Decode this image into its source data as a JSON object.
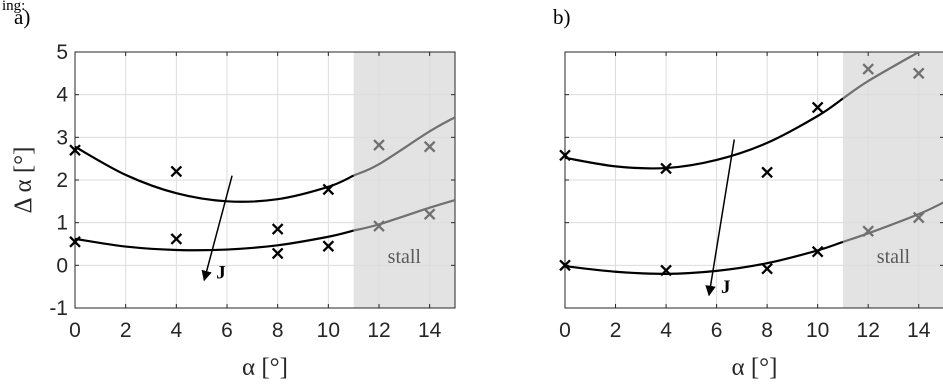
{
  "top_fragment": "ing:",
  "chart_data": [
    {
      "panel": "a)",
      "type": "scatter",
      "xlabel": "α [°]",
      "ylabel": "Δ α [°]",
      "xlim": [
        0,
        15
      ],
      "ylim": [
        -1,
        5
      ],
      "xticks": [
        0,
        2,
        4,
        6,
        8,
        10,
        12,
        14
      ],
      "yticks": [
        -1,
        0,
        1,
        2,
        3,
        4,
        5
      ],
      "grid": true,
      "stall_region": {
        "from": 11,
        "to": 15,
        "label": "stall"
      },
      "series": [
        {
          "points": [
            [
              0,
              2.7
            ],
            [
              4,
              2.2
            ],
            [
              10,
              1.78
            ],
            [
              12,
              2.82
            ],
            [
              14,
              2.78
            ]
          ],
          "curve": [
            [
              0,
              2.78
            ],
            [
              2,
              2.12
            ],
            [
              4,
              1.69
            ],
            [
              6,
              1.5
            ],
            [
              8,
              1.55
            ],
            [
              10,
              1.84
            ],
            [
              12,
              2.37
            ],
            [
              14,
              3.14
            ],
            [
              15,
              3.47
            ]
          ]
        },
        {
          "points": [
            [
              0,
              0.55
            ],
            [
              4,
              0.62
            ],
            [
              8,
              0.85
            ],
            [
              8,
              0.28
            ],
            [
              10,
              0.45
            ],
            [
              12,
              0.92
            ],
            [
              14,
              1.2
            ]
          ],
          "curve": [
            [
              0,
              0.62
            ],
            [
              2,
              0.44
            ],
            [
              4,
              0.36
            ],
            [
              6,
              0.37
            ],
            [
              8,
              0.47
            ],
            [
              10,
              0.67
            ],
            [
              12,
              0.96
            ],
            [
              14,
              1.35
            ],
            [
              15,
              1.53
            ]
          ]
        }
      ],
      "arrow": {
        "from": [
          6.2,
          2.1
        ],
        "to": [
          5.1,
          -0.35
        ],
        "label": "J"
      }
    },
    {
      "panel": "b)",
      "type": "scatter",
      "xlabel": "α [°]",
      "ylabel": "",
      "xlim": [
        0,
        15
      ],
      "ylim": [
        -1,
        5
      ],
      "xticks": [
        0,
        2,
        4,
        6,
        8,
        10,
        12,
        14
      ],
      "yticks": [
        -1,
        0,
        1,
        2,
        3,
        4,
        5
      ],
      "grid": true,
      "stall_region": {
        "from": 11,
        "to": 15,
        "label": "stall"
      },
      "series": [
        {
          "points": [
            [
              0,
              2.58
            ],
            [
              4,
              2.27
            ],
            [
              8,
              2.18
            ],
            [
              10,
              3.7
            ],
            [
              12,
              4.6
            ],
            [
              14,
              4.5
            ]
          ],
          "curve": [
            [
              0,
              2.52
            ],
            [
              2,
              2.32
            ],
            [
              4,
              2.28
            ],
            [
              6,
              2.47
            ],
            [
              8,
              2.87
            ],
            [
              10,
              3.5
            ],
            [
              12,
              4.32
            ],
            [
              14,
              5.0
            ]
          ]
        },
        {
          "points": [
            [
              0,
              0.0
            ],
            [
              4,
              -0.12
            ],
            [
              8,
              -0.08
            ],
            [
              10,
              0.32
            ],
            [
              12,
              0.8
            ],
            [
              14,
              1.12
            ]
          ],
          "curve": [
            [
              0,
              -0.02
            ],
            [
              2,
              -0.15
            ],
            [
              4,
              -0.2
            ],
            [
              6,
              -0.13
            ],
            [
              8,
              0.05
            ],
            [
              10,
              0.35
            ],
            [
              12,
              0.75
            ],
            [
              14,
              1.2
            ],
            [
              15,
              1.48
            ]
          ]
        }
      ],
      "arrow": {
        "from": [
          6.7,
          2.95
        ],
        "to": [
          5.7,
          -0.7
        ],
        "label": "J"
      }
    }
  ]
}
